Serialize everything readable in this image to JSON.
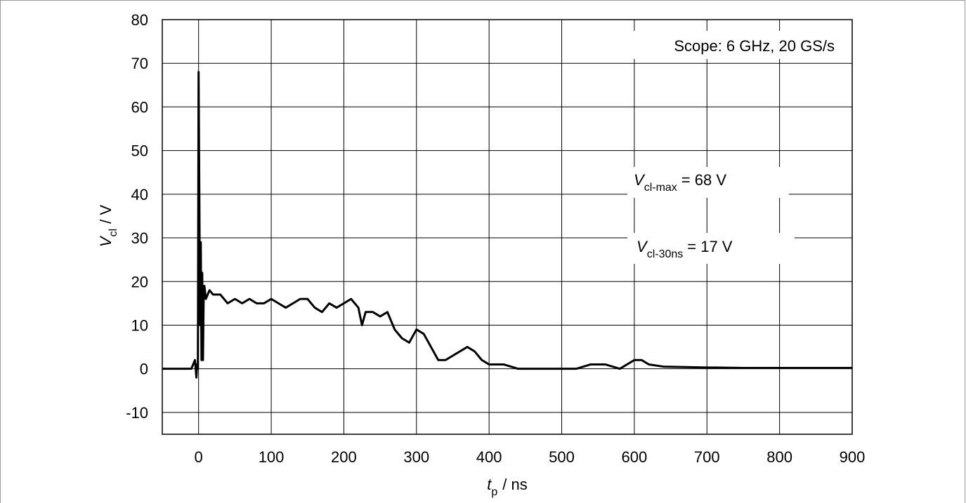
{
  "chart_data": {
    "type": "line",
    "x_label": {
      "symbol": "t",
      "subscript": "p",
      "unit": "/ ns"
    },
    "y_label": {
      "symbol": "V",
      "subscript": "cl",
      "unit": "/ V"
    },
    "annotations": [
      {
        "text": "Scope: 6 GHz, 20 GS/s"
      },
      {
        "symbol": "V",
        "subscript": "cl-max",
        "text": "= 68 V"
      },
      {
        "symbol": "V",
        "subscript": "cl-30ns",
        "text": "= 17 V"
      }
    ],
    "x": [
      -50,
      -10,
      -5,
      -3,
      -2,
      -1,
      0,
      1,
      2,
      3,
      4,
      5,
      6,
      7,
      8,
      10,
      15,
      20,
      30,
      40,
      50,
      60,
      70,
      80,
      90,
      100,
      110,
      120,
      130,
      140,
      150,
      160,
      170,
      180,
      190,
      200,
      210,
      220,
      225,
      230,
      240,
      250,
      260,
      270,
      280,
      290,
      300,
      310,
      320,
      330,
      340,
      350,
      360,
      370,
      380,
      390,
      400,
      420,
      440,
      460,
      480,
      500,
      520,
      540,
      560,
      580,
      600,
      610,
      620,
      640,
      700,
      750,
      800,
      850,
      900
    ],
    "values": [
      0,
      0,
      2,
      -2,
      1,
      0,
      68,
      40,
      10,
      29,
      2,
      22,
      2,
      17,
      19,
      16,
      18,
      17,
      17,
      15,
      16,
      15,
      16,
      15,
      15,
      16,
      15,
      14,
      15,
      16,
      16,
      14,
      13,
      15,
      14,
      15,
      16,
      14,
      10,
      13,
      13,
      12,
      13,
      9,
      7,
      6,
      9,
      8,
      5,
      2,
      2,
      3,
      4,
      5,
      4,
      2,
      1,
      1,
      0,
      0,
      0,
      0,
      0,
      1,
      1,
      0,
      2,
      2,
      1,
      0.5,
      0.3,
      0.2,
      0.2,
      0.2,
      0.2
    ],
    "color": "#000000",
    "xlim": [
      -50,
      900
    ],
    "xticks": [
      0,
      100,
      200,
      300,
      400,
      500,
      600,
      700,
      800,
      900
    ],
    "ylim": [
      -15,
      80
    ],
    "yticks": [
      -10,
      0,
      10,
      20,
      30,
      40,
      50,
      60,
      70,
      80
    ],
    "grid": true
  }
}
